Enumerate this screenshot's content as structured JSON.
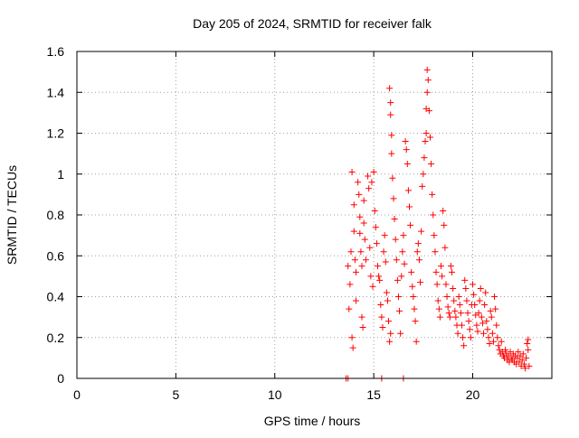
{
  "chart_data": {
    "type": "scatter",
    "title": "Day 205 of 2024, SRMTID for receiver falk",
    "xlabel": "GPS time / hours",
    "ylabel": "SRMTID / TECUs",
    "xlim": [
      0,
      24
    ],
    "ylim": [
      0,
      1.6
    ],
    "xticks": [
      0,
      5,
      10,
      15,
      20
    ],
    "yticks": [
      0,
      0.2,
      0.4,
      0.6,
      0.8,
      1,
      1.2,
      1.4,
      1.6
    ],
    "xtick_labels": [
      "0",
      "5",
      "10",
      "15",
      "20"
    ],
    "ytick_labels": [
      "0",
      "0.2",
      "0.4",
      "0.6",
      "0.8",
      "1",
      "1.2",
      "1.4",
      "1.6"
    ],
    "grid": true,
    "marker": "+",
    "color": "#ff0000",
    "series": [
      {
        "name": "SRMTID",
        "points": [
          [
            13.6,
            0.0
          ],
          [
            13.7,
            0.0
          ],
          [
            15.4,
            0.0
          ],
          [
            16.5,
            0.0
          ],
          [
            13.7,
            0.55
          ],
          [
            13.75,
            0.34
          ],
          [
            13.8,
            0.46
          ],
          [
            13.85,
            0.62
          ],
          [
            13.9,
            0.2
          ],
          [
            13.95,
            0.15
          ],
          [
            13.9,
            1.01
          ],
          [
            14.0,
            0.85
          ],
          [
            14.0,
            0.72
          ],
          [
            14.05,
            0.58
          ],
          [
            14.1,
            0.52
          ],
          [
            14.1,
            0.38
          ],
          [
            14.2,
            0.96
          ],
          [
            14.25,
            0.9
          ],
          [
            14.3,
            0.79
          ],
          [
            14.3,
            0.71
          ],
          [
            14.35,
            0.62
          ],
          [
            14.4,
            0.55
          ],
          [
            14.4,
            0.3
          ],
          [
            14.45,
            0.25
          ],
          [
            14.5,
            0.87
          ],
          [
            14.5,
            0.76
          ],
          [
            14.55,
            0.68
          ],
          [
            14.6,
            0.58
          ],
          [
            14.7,
            0.99
          ],
          [
            14.75,
            0.93
          ],
          [
            14.8,
            0.64
          ],
          [
            14.85,
            0.5
          ],
          [
            14.9,
            0.96
          ],
          [
            14.95,
            0.45
          ],
          [
            15.0,
            1.01
          ],
          [
            15.05,
            0.82
          ],
          [
            15.1,
            0.74
          ],
          [
            15.15,
            0.66
          ],
          [
            15.2,
            0.55
          ],
          [
            15.25,
            0.5
          ],
          [
            15.3,
            0.48
          ],
          [
            15.35,
            0.36
          ],
          [
            15.4,
            0.3
          ],
          [
            15.45,
            0.25
          ],
          [
            15.5,
            0.62
          ],
          [
            15.55,
            0.7
          ],
          [
            15.6,
            0.57
          ],
          [
            15.65,
            0.42
          ],
          [
            15.7,
            0.38
          ],
          [
            15.75,
            0.28
          ],
          [
            15.8,
            0.18
          ],
          [
            15.85,
            0.22
          ],
          [
            15.8,
            1.42
          ],
          [
            15.85,
            1.35
          ],
          [
            15.85,
            1.29
          ],
          [
            15.9,
            1.19
          ],
          [
            15.9,
            1.1
          ],
          [
            15.95,
            0.98
          ],
          [
            16.0,
            0.88
          ],
          [
            16.05,
            0.78
          ],
          [
            16.1,
            0.68
          ],
          [
            16.15,
            0.58
          ],
          [
            16.2,
            0.48
          ],
          [
            16.25,
            0.4
          ],
          [
            16.3,
            0.33
          ],
          [
            16.35,
            0.22
          ],
          [
            16.4,
            0.5
          ],
          [
            16.45,
            0.62
          ],
          [
            16.5,
            0.7
          ],
          [
            16.55,
            0.56
          ],
          [
            16.6,
            1.16
          ],
          [
            16.65,
            1.12
          ],
          [
            16.7,
            1.05
          ],
          [
            16.75,
            0.92
          ],
          [
            16.8,
            0.84
          ],
          [
            16.85,
            0.75
          ],
          [
            16.9,
            0.52
          ],
          [
            16.95,
            0.45
          ],
          [
            17.0,
            0.4
          ],
          [
            17.05,
            0.34
          ],
          [
            17.1,
            0.28
          ],
          [
            17.15,
            0.18
          ],
          [
            17.2,
            0.62
          ],
          [
            17.25,
            0.66
          ],
          [
            17.3,
            0.58
          ],
          [
            17.35,
            0.47
          ],
          [
            17.4,
            0.72
          ],
          [
            17.45,
            0.94
          ],
          [
            17.5,
            1.0
          ],
          [
            17.55,
            1.08
          ],
          [
            17.6,
            1.16
          ],
          [
            17.65,
            1.2
          ],
          [
            17.65,
            1.32
          ],
          [
            17.7,
            1.4
          ],
          [
            17.7,
            1.51
          ],
          [
            17.75,
            1.46
          ],
          [
            17.8,
            1.31
          ],
          [
            17.85,
            1.18
          ],
          [
            17.9,
            1.05
          ],
          [
            17.95,
            0.9
          ],
          [
            18.0,
            0.8
          ],
          [
            18.05,
            0.7
          ],
          [
            18.1,
            0.62
          ],
          [
            18.15,
            0.52
          ],
          [
            18.2,
            0.46
          ],
          [
            18.25,
            0.38
          ],
          [
            18.3,
            0.34
          ],
          [
            18.35,
            0.3
          ],
          [
            18.4,
            0.55
          ],
          [
            18.45,
            0.5
          ],
          [
            18.5,
            0.82
          ],
          [
            18.55,
            0.75
          ],
          [
            18.6,
            0.64
          ],
          [
            18.65,
            0.46
          ],
          [
            18.7,
            0.4
          ],
          [
            18.75,
            0.35
          ],
          [
            18.8,
            0.32
          ],
          [
            18.85,
            0.3
          ],
          [
            18.9,
            0.55
          ],
          [
            18.95,
            0.52
          ],
          [
            19.0,
            0.44
          ],
          [
            19.05,
            0.38
          ],
          [
            19.1,
            0.33
          ],
          [
            19.15,
            0.3
          ],
          [
            19.2,
            0.26
          ],
          [
            19.25,
            0.22
          ],
          [
            19.3,
            0.4
          ],
          [
            19.35,
            0.36
          ],
          [
            19.4,
            0.32
          ],
          [
            19.45,
            0.26
          ],
          [
            19.5,
            0.2
          ],
          [
            19.55,
            0.16
          ],
          [
            19.6,
            0.48
          ],
          [
            19.65,
            0.44
          ],
          [
            19.7,
            0.38
          ],
          [
            19.75,
            0.32
          ],
          [
            19.8,
            0.28
          ],
          [
            19.85,
            0.24
          ],
          [
            19.9,
            0.2
          ],
          [
            19.95,
            0.36
          ],
          [
            20.0,
            0.46
          ],
          [
            20.05,
            0.41
          ],
          [
            20.1,
            0.36
          ],
          [
            20.15,
            0.31
          ],
          [
            20.2,
            0.26
          ],
          [
            20.25,
            0.23
          ],
          [
            20.3,
            0.32
          ],
          [
            20.35,
            0.38
          ],
          [
            20.4,
            0.44
          ],
          [
            20.45,
            0.3
          ],
          [
            20.5,
            0.27
          ],
          [
            20.55,
            0.22
          ],
          [
            20.6,
            0.36
          ],
          [
            20.65,
            0.42
          ],
          [
            20.7,
            0.28
          ],
          [
            20.75,
            0.24
          ],
          [
            20.8,
            0.2
          ],
          [
            20.85,
            0.17
          ],
          [
            20.9,
            0.33
          ],
          [
            20.95,
            0.3
          ],
          [
            21.0,
            0.22
          ],
          [
            21.05,
            0.18
          ],
          [
            21.1,
            0.4
          ],
          [
            21.15,
            0.34
          ],
          [
            21.2,
            0.26
          ],
          [
            21.25,
            0.2
          ],
          [
            21.3,
            0.16
          ],
          [
            21.35,
            0.14
          ],
          [
            21.4,
            0.12
          ],
          [
            21.45,
            0.18
          ],
          [
            21.5,
            0.13
          ],
          [
            21.55,
            0.11
          ],
          [
            21.6,
            0.1
          ],
          [
            21.65,
            0.14
          ],
          [
            21.7,
            0.12
          ],
          [
            21.75,
            0.09
          ],
          [
            21.8,
            0.11
          ],
          [
            21.85,
            0.08
          ],
          [
            21.9,
            0.13
          ],
          [
            21.95,
            0.1
          ],
          [
            22.0,
            0.09
          ],
          [
            22.05,
            0.12
          ],
          [
            22.1,
            0.08
          ],
          [
            22.15,
            0.11
          ],
          [
            22.2,
            0.07
          ],
          [
            22.25,
            0.1
          ],
          [
            22.3,
            0.13
          ],
          [
            22.35,
            0.08
          ],
          [
            22.4,
            0.11
          ],
          [
            22.45,
            0.06
          ],
          [
            22.5,
            0.09
          ],
          [
            22.55,
            0.12
          ],
          [
            22.6,
            0.07
          ],
          [
            22.65,
            0.05
          ],
          [
            22.7,
            0.1
          ],
          [
            22.75,
            0.17
          ],
          [
            22.8,
            0.19
          ],
          [
            22.8,
            0.14
          ],
          [
            22.85,
            0.06
          ]
        ]
      }
    ]
  }
}
